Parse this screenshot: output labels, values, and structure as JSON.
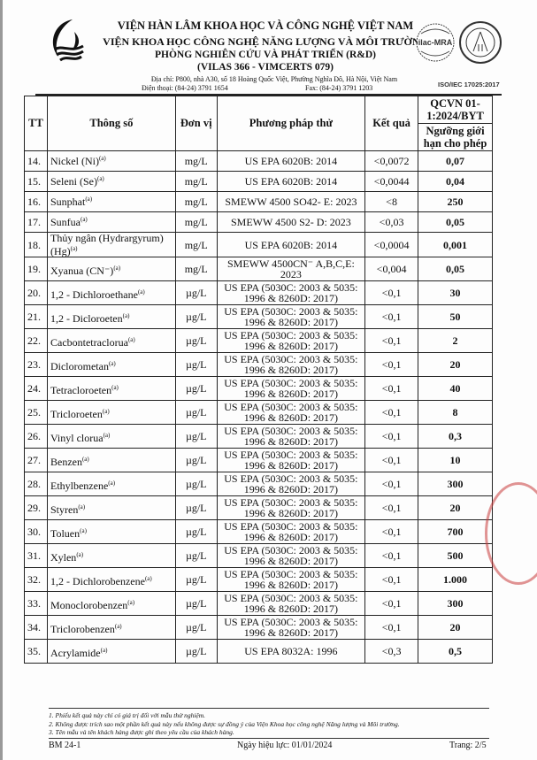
{
  "header": {
    "line1": "VIỆN HÀN LÂM KHOA HỌC VÀ CÔNG NGHỆ VIỆT NAM",
    "line2": "VIỆN KHOA HỌC CÔNG NGHỆ NĂNG LƯỢNG VÀ MÔI TRƯỜNG",
    "line3": "PHÒNG NGHIÊN CỨU VÀ PHÁT TRIỂN (R&D)",
    "line4": "(VILAS 366 - VIMCERTS 079)",
    "address": "Địa chỉ: P800, nhà A30, số 18 Hoàng Quốc Việt, Phường Nghĩa Đô, Hà Nội, Việt Nam",
    "phone": "Điện thoại: (84-24) 3791 1654",
    "fax": "Fax: (84-24) 3791 1203",
    "ilac": "ilac-MRA",
    "bureau": "BUREAU OF ACCREDITATION VIETNAM",
    "iso": "ISO/IEC 17025:2017"
  },
  "table": {
    "headers": {
      "tt": "TT",
      "param": "Thông số",
      "unit": "Đơn vị",
      "method": "Phương pháp thử",
      "result": "Kết quả",
      "qcvn": "QCVN 01-1:2024/BYT",
      "limit": "Ngưỡng giới hạn cho phép"
    },
    "rows": [
      {
        "tt": "14.",
        "param": "Nickel (Ni)",
        "sup": "(a)",
        "unit": "mg/L",
        "method": "US EPA 6020B: 2014",
        "result": "<0,0072",
        "limit": "0,07"
      },
      {
        "tt": "15.",
        "param": "Seleni (Se)",
        "sup": "(a)",
        "unit": "mg/L",
        "method": "US EPA 6020B: 2014",
        "result": "<0,0044",
        "limit": "0,04"
      },
      {
        "tt": "16.",
        "param": "Sunphat",
        "sup": "(a)",
        "unit": "mg/L",
        "method": "SMEWW 4500 SO42- E: 2023",
        "result": "<8",
        "limit": "250"
      },
      {
        "tt": "17.",
        "param": "Sunfua",
        "sup": "(a)",
        "unit": "mg/L",
        "method": "SMEWW 4500 S2- D: 2023",
        "result": "<0,03",
        "limit": "0,05"
      },
      {
        "tt": "18.",
        "param": "Thủy ngân (Hydrargyrum) (Hg)",
        "sup": "(a)",
        "unit": "mg/L",
        "method": "US EPA 6020B: 2014",
        "result": "<0,0004",
        "limit": "0,001"
      },
      {
        "tt": "19.",
        "param": "Xyanua (CN⁻)",
        "sup": "(a)",
        "unit": "mg/L",
        "method": "SMEWW 4500CN⁻ A,B,C,E: 2023",
        "result": "<0,004",
        "limit": "0,05"
      },
      {
        "tt": "20.",
        "param": "1,2 - Dichloroethane",
        "sup": "(a)",
        "unit": "µg/L",
        "method": "US EPA (5030C: 2003 & 5035: 1996 & 8260D: 2017)",
        "result": "<0,1",
        "limit": "30"
      },
      {
        "tt": "21.",
        "param": "1,2 - Dicloroeten",
        "sup": "(a)",
        "unit": "µg/L",
        "method": "US EPA (5030C: 2003 & 5035: 1996 & 8260D: 2017)",
        "result": "<0,1",
        "limit": "50"
      },
      {
        "tt": "22.",
        "param": "Cacbontetraclorua",
        "sup": "(a)",
        "unit": "µg/L",
        "method": "US EPA (5030C: 2003 & 5035: 1996 & 8260D: 2017)",
        "result": "<0,1",
        "limit": "2"
      },
      {
        "tt": "23.",
        "param": "Diclorometan",
        "sup": "(a)",
        "unit": "µg/L",
        "method": "US EPA (5030C: 2003 & 5035: 1996 & 8260D: 2017)",
        "result": "<0,1",
        "limit": "20"
      },
      {
        "tt": "24.",
        "param": "Tetracloroeten",
        "sup": "(a)",
        "unit": "µg/L",
        "method": "US EPA (5030C: 2003 & 5035: 1996 & 8260D: 2017)",
        "result": "<0,1",
        "limit": "40"
      },
      {
        "tt": "25.",
        "param": "Tricloroeten",
        "sup": "(a)",
        "unit": "µg/L",
        "method": "US EPA (5030C: 2003 & 5035: 1996 & 8260D: 2017)",
        "result": "<0,1",
        "limit": "8"
      },
      {
        "tt": "26.",
        "param": "Vinyl clorua",
        "sup": "(a)",
        "unit": "µg/L",
        "method": "US EPA (5030C: 2003 & 5035: 1996 & 8260D: 2017)",
        "result": "<0,1",
        "limit": "0,3"
      },
      {
        "tt": "27.",
        "param": "Benzen",
        "sup": "(a)",
        "unit": "µg/L",
        "method": "US EPA (5030C: 2003 & 5035: 1996 & 8260D: 2017)",
        "result": "<0,1",
        "limit": "10"
      },
      {
        "tt": "28.",
        "param": "Ethylbenzene",
        "sup": "(a)",
        "unit": "µg/L",
        "method": "US EPA (5030C: 2003 & 5035: 1996 & 8260D: 2017)",
        "result": "<0,1",
        "limit": "300"
      },
      {
        "tt": "29.",
        "param": "Styren",
        "sup": "(a)",
        "unit": "µg/L",
        "method": "US EPA (5030C: 2003 & 5035: 1996 & 8260D: 2017)",
        "result": "<0,1",
        "limit": "20"
      },
      {
        "tt": "30.",
        "param": "Toluen",
        "sup": "(a)",
        "unit": "µg/L",
        "method": "US EPA (5030C: 2003 & 5035: 1996 & 8260D: 2017)",
        "result": "<0,1",
        "limit": "700"
      },
      {
        "tt": "31.",
        "param": "Xylen",
        "sup": "(a)",
        "unit": "µg/L",
        "method": "US EPA (5030C: 2003 & 5035: 1996 & 8260D: 2017)",
        "result": "<0,1",
        "limit": "500"
      },
      {
        "tt": "32.",
        "param": "1,2 - Dichlorobenzene",
        "sup": "(a)",
        "unit": "µg/L",
        "method": "US EPA (5030C: 2003 & 5035: 1996 & 8260D: 2017)",
        "result": "<0,1",
        "limit": "1.000"
      },
      {
        "tt": "33.",
        "param": "Monoclorobenzen",
        "sup": "(a)",
        "unit": "µg/L",
        "method": "US EPA (5030C: 2003 & 5035: 1996 & 8260D: 2017)",
        "result": "<0,1",
        "limit": "300"
      },
      {
        "tt": "34.",
        "param": "Triclorobenzen",
        "sup": "(a)",
        "unit": "µg/L",
        "method": "US EPA (5030C: 2003 & 5035: 1996 & 8260D: 2017)",
        "result": "<0,1",
        "limit": "20"
      },
      {
        "tt": "35.",
        "param": "Acrylamide",
        "sup": "(a)",
        "unit": "µg/L",
        "method": "US EPA 8032A: 1996",
        "result": "<0,3",
        "limit": "0,5"
      }
    ]
  },
  "notes": [
    "1. Phiếu kết quả này chỉ có giá trị đối với mẫu thử nghiệm.",
    "2. Không được trích sao một phần kết quả này nếu không được sự đồng ý của Viện Khoa học công nghệ Năng lượng và Môi trường.",
    "3. Tên mẫu và tên khách hàng được ghi theo yêu cầu của khách hàng."
  ],
  "footer": {
    "form": "BM 24-1",
    "effective": "Ngày hiệu lực: 01/01/2024",
    "page": "Trang: 2/5"
  },
  "colors": {
    "stamp": "#c83c3c",
    "text": "#111111"
  }
}
